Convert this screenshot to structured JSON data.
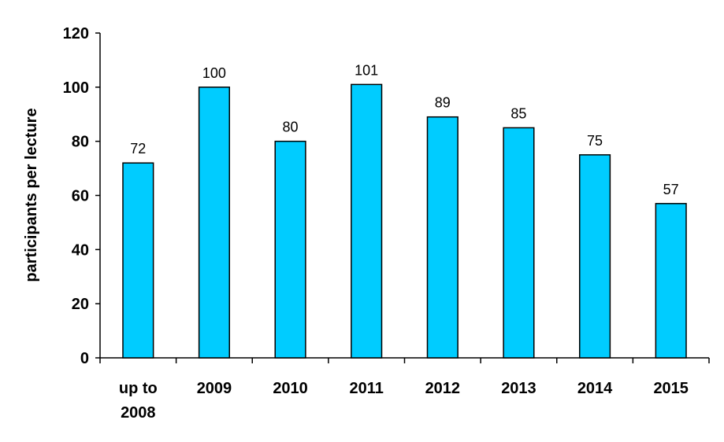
{
  "chart_data": {
    "type": "bar",
    "categories": [
      [
        "up to",
        "2008"
      ],
      [
        "2009"
      ],
      [
        "2010"
      ],
      [
        "2011"
      ],
      [
        "2012"
      ],
      [
        "2013"
      ],
      [
        "2014"
      ],
      [
        "2015"
      ]
    ],
    "values": [
      72,
      100,
      80,
      101,
      89,
      85,
      75,
      57
    ],
    "data_labels": [
      "72",
      "100",
      "80",
      "101",
      "89",
      "85",
      "75",
      "57"
    ],
    "title": "",
    "xlabel": "",
    "ylabel": "participants per lecture",
    "ylim": [
      0,
      120
    ],
    "yticks": [
      0,
      20,
      40,
      60,
      80,
      100,
      120
    ],
    "grid": false,
    "bar_color": "#00ccff"
  }
}
